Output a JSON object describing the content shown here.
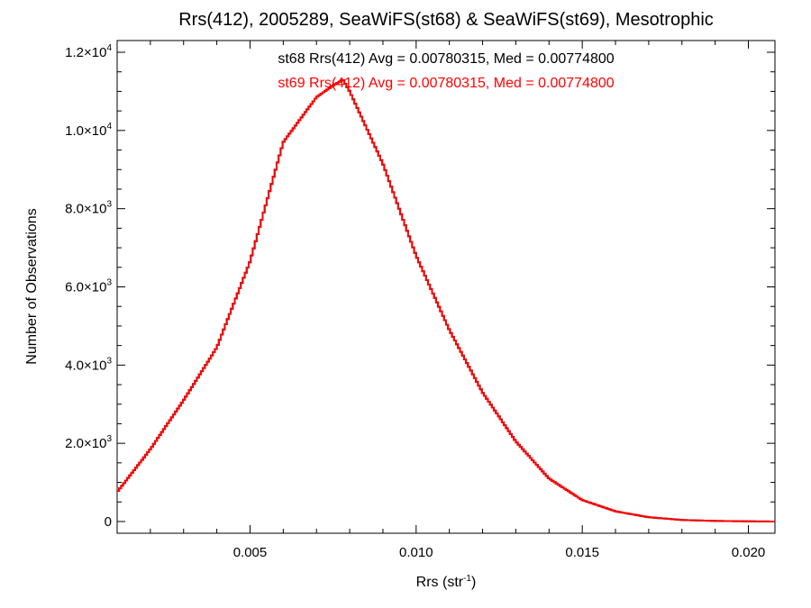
{
  "chart_data": {
    "type": "histogram-step",
    "title": "Rrs(412), 2005289, SeaWiFS(st68) & SeaWiFS(st69), Mesotrophic",
    "xlabel": {
      "base": "Rrs (str",
      "sup": "-1",
      "tail": ")"
    },
    "ylabel": "Number of Observations",
    "xlim": [
      0.001,
      0.0208
    ],
    "ylim": [
      -300,
      12300
    ],
    "x_ticks": [
      {
        "value": 0.005,
        "label": "0.005"
      },
      {
        "value": 0.01,
        "label": "0.010"
      },
      {
        "value": 0.015,
        "label": "0.015"
      },
      {
        "value": 0.02,
        "label": "0.020"
      }
    ],
    "y_ticks": [
      {
        "value": 0,
        "mantissa": "0",
        "exp": ""
      },
      {
        "value": 2000,
        "mantissa": "2.0×10",
        "exp": "3"
      },
      {
        "value": 4000,
        "mantissa": "4.0×10",
        "exp": "3"
      },
      {
        "value": 6000,
        "mantissa": "6.0×10",
        "exp": "3"
      },
      {
        "value": 8000,
        "mantissa": "8.0×10",
        "exp": "3"
      },
      {
        "value": 10000,
        "mantissa": "1.0×10",
        "exp": "4"
      },
      {
        "value": 12000,
        "mantissa": "1.2×10",
        "exp": "4"
      }
    ],
    "annotations": [
      {
        "text": "st68 Rrs(412) Avg = 0.00780315, Med = 0.00774800",
        "color": "#000000"
      },
      {
        "text": "st69 Rrs(412) Avg = 0.00780315, Med = 0.00774800",
        "color": "#ff0000"
      }
    ],
    "series": [
      {
        "name": "st68",
        "color": "#000000",
        "x": [
          0.001,
          0.002,
          0.003,
          0.004,
          0.005,
          0.006,
          0.007,
          0.0075,
          0.0078,
          0.008,
          0.009,
          0.01,
          0.011,
          0.012,
          0.013,
          0.014,
          0.015,
          0.016,
          0.017,
          0.018,
          0.019,
          0.02,
          0.0208
        ],
        "y": [
          750,
          1850,
          3100,
          4450,
          6650,
          9700,
          10850,
          11150,
          11300,
          11000,
          9150,
          6800,
          4900,
          3300,
          2050,
          1100,
          550,
          260,
          110,
          40,
          15,
          5,
          0
        ]
      },
      {
        "name": "st69",
        "color": "#ff0000",
        "x": [
          0.001,
          0.002,
          0.003,
          0.004,
          0.005,
          0.006,
          0.007,
          0.0075,
          0.0078,
          0.008,
          0.009,
          0.01,
          0.011,
          0.012,
          0.013,
          0.014,
          0.015,
          0.016,
          0.017,
          0.018,
          0.019,
          0.02,
          0.0208
        ],
        "y": [
          750,
          1850,
          3100,
          4450,
          6650,
          9700,
          10850,
          11150,
          11300,
          11000,
          9150,
          6800,
          4900,
          3300,
          2050,
          1100,
          550,
          260,
          110,
          40,
          15,
          5,
          0
        ]
      }
    ],
    "grid": false,
    "legend": "none"
  }
}
